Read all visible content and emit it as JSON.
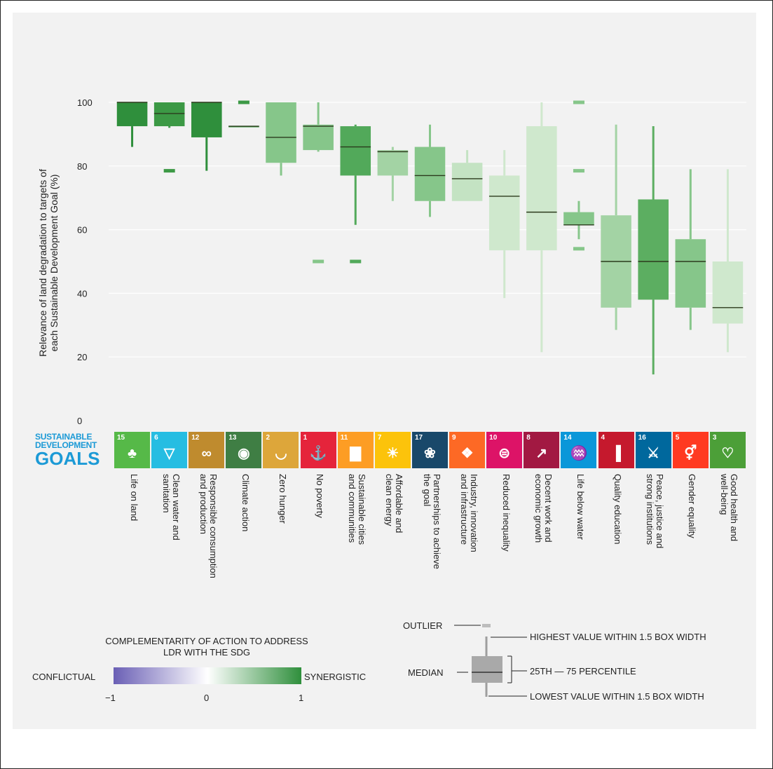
{
  "chart_data": {
    "type": "box",
    "ylabel": "Relevance of land degradation to targets of each Sustainable Development Goal (%)",
    "ylim": [
      0,
      100
    ],
    "yticks": [
      0,
      20,
      40,
      60,
      80,
      100
    ],
    "grid": true,
    "categories": [
      "Life on land",
      "Clean water and sanitation",
      "Responsible consumption and production",
      "Climate action",
      "Zero hunger",
      "No poverty",
      "Sustainable cities and communities",
      "Affordable and clean energy",
      "Partnerships to achieve the goal",
      "Industry, innovation and infrastructure",
      "Reduced inequality",
      "Decent work and economic growth",
      "Life below water",
      "Quality education",
      "Peace, justice and strong institutions",
      "Gender equality",
      "Good health and well-being"
    ],
    "boxes": [
      {
        "goal": "Life on land",
        "low": 86,
        "q1": 92.5,
        "median": 100,
        "q3": 100,
        "high": 100,
        "outliers": [],
        "color": "#2f8f3c"
      },
      {
        "goal": "Clean water and sanitation",
        "low": 92,
        "q1": 92.5,
        "median": 96.5,
        "q3": 100,
        "high": 100,
        "outliers": [
          78.5
        ],
        "color": "#3c9945"
      },
      {
        "goal": "Responsible consumption and production",
        "low": 78.5,
        "q1": 89,
        "median": 100,
        "q3": 100,
        "high": 100,
        "outliers": [],
        "color": "#2f8f3c"
      },
      {
        "goal": "Climate action",
        "low": 92.5,
        "q1": 92.5,
        "median": 92.5,
        "q3": 92.5,
        "high": 92.5,
        "outliers": [
          100
        ],
        "color": "#3c9945"
      },
      {
        "goal": "Zero hunger",
        "low": 77,
        "q1": 81,
        "median": 89,
        "q3": 100,
        "high": 100,
        "outliers": [],
        "color": "#86c68a"
      },
      {
        "goal": "No poverty",
        "low": 84.5,
        "q1": 85,
        "median": 92.5,
        "q3": 93,
        "high": 100,
        "outliers": [
          50
        ],
        "color": "#86c68a"
      },
      {
        "goal": "Sustainable cities and communities",
        "low": 61.5,
        "q1": 77,
        "median": 86,
        "q3": 92.5,
        "high": 93,
        "outliers": [
          50
        ],
        "color": "#52a95a"
      },
      {
        "goal": "Affordable and clean energy",
        "low": 69,
        "q1": 77,
        "median": 84.5,
        "q3": 85,
        "high": 86,
        "outliers": [],
        "color": "#a3d3a4"
      },
      {
        "goal": "Partnerships to achieve the goal",
        "low": 64,
        "q1": 69,
        "median": 77,
        "q3": 86,
        "high": 93,
        "outliers": [],
        "color": "#86c68a"
      },
      {
        "goal": "Industry, innovation and infrastructure",
        "low": 69,
        "q1": 69,
        "median": 76,
        "q3": 81,
        "high": 85,
        "outliers": [],
        "color": "#c4e3c3"
      },
      {
        "goal": "Reduced inequality",
        "low": 38.5,
        "q1": 53.5,
        "median": 70.5,
        "q3": 77,
        "high": 85,
        "outliers": [],
        "color": "#cfe8cd"
      },
      {
        "goal": "Decent work and economic growth",
        "low": 21.5,
        "q1": 53.5,
        "median": 65.5,
        "q3": 92.5,
        "high": 100,
        "outliers": [],
        "color": "#cfe8cd"
      },
      {
        "goal": "Life below water",
        "low": 57,
        "q1": 61.5,
        "median": 61.5,
        "q3": 65.5,
        "high": 69,
        "outliers": [
          100,
          78.5,
          54
        ],
        "color": "#86c68a"
      },
      {
        "goal": "Quality education",
        "low": 28.5,
        "q1": 35.5,
        "median": 50,
        "q3": 64.5,
        "high": 93,
        "outliers": [],
        "color": "#a3d3a4"
      },
      {
        "goal": "Peace, justice and strong institutions",
        "low": 14.5,
        "q1": 38,
        "median": 50,
        "q3": 69.5,
        "high": 92.5,
        "outliers": [],
        "color": "#5cae61"
      },
      {
        "goal": "Gender equality",
        "low": 28.5,
        "q1": 35.5,
        "median": 50,
        "q3": 57,
        "high": 79,
        "outliers": [],
        "color": "#86c68a"
      },
      {
        "goal": "Good health and well-being",
        "low": 21.5,
        "q1": 30.5,
        "median": 35.5,
        "q3": 50,
        "high": 79,
        "outliers": [],
        "color": "#cfe8cd"
      }
    ]
  },
  "sdg_logo": {
    "line1": "SUSTAINABLE",
    "line2": "DEVELOPMENT",
    "line3": "GOALS"
  },
  "sdg_tiles": [
    {
      "num": "15",
      "color": "#56b948",
      "icon": "tree-icon"
    },
    {
      "num": "6",
      "color": "#26bde2",
      "icon": "water-icon"
    },
    {
      "num": "12",
      "color": "#bf8b2e",
      "icon": "infinity-icon"
    },
    {
      "num": "13",
      "color": "#3f7e44",
      "icon": "eye-globe-icon"
    },
    {
      "num": "2",
      "color": "#dda63a",
      "icon": "bowl-icon"
    },
    {
      "num": "1",
      "color": "#e5243b",
      "icon": "family-icon"
    },
    {
      "num": "11",
      "color": "#fd9d24",
      "icon": "city-icon"
    },
    {
      "num": "7",
      "color": "#fcc30b",
      "icon": "sun-icon"
    },
    {
      "num": "17",
      "color": "#19486a",
      "icon": "flower-icon"
    },
    {
      "num": "9",
      "color": "#fd6925",
      "icon": "cubes-icon"
    },
    {
      "num": "10",
      "color": "#dd1367",
      "icon": "equal-icon"
    },
    {
      "num": "8",
      "color": "#a21942",
      "icon": "growth-chart-icon"
    },
    {
      "num": "14",
      "color": "#0a97d9",
      "icon": "fish-icon"
    },
    {
      "num": "4",
      "color": "#c5192d",
      "icon": "book-icon"
    },
    {
      "num": "16",
      "color": "#00689d",
      "icon": "dove-icon"
    },
    {
      "num": "5",
      "color": "#ff3a21",
      "icon": "gender-icon"
    },
    {
      "num": "3",
      "color": "#4c9f38",
      "icon": "heartbeat-icon"
    }
  ],
  "goal_labels": [
    "Life on land",
    "Clean water and\nsanitation",
    "Responsible consumption\nand production",
    "Climate action",
    "Zero hunger",
    "No poverty",
    "Sustainable cities\nand communities",
    "Affordable and\nclean energy",
    "Partnerships to achieve\nthe goal",
    "Industry, innovation\nand infrastructure",
    "Reduced inequality",
    "Decent work and\neconomic growth",
    "Life below water",
    "Quality education",
    "Peace, justice and\nstrong institutions",
    "Gender equality",
    "Good health and\nwell-being"
  ],
  "legend": {
    "title": "COMPLEMENTARITY OF ACTION TO ADDRESS LDR WITH THE SDG",
    "left_label": "CONFLICTUAL",
    "right_label": "SYNERGISTIC",
    "ticks": [
      "−1",
      "0",
      "1"
    ],
    "colors": {
      "low": "#6a5fb5",
      "mid": "#ffffff",
      "high": "#2f8f3c"
    }
  },
  "key": {
    "outlier": "OUTLIER",
    "highest": "HIGHEST VALUE WITHIN 1.5 BOX WIDTH",
    "median": "MEDIAN",
    "percentile": "25TH — 75 PERCENTILE",
    "lowest": "LOWEST VALUE WITHIN 1.5 BOX WIDTH"
  }
}
